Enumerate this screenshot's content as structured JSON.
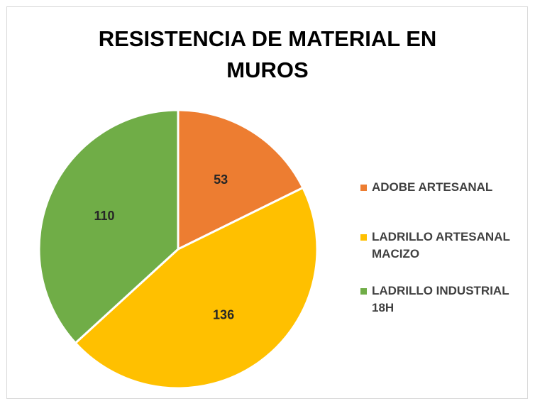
{
  "chart_data": {
    "type": "pie",
    "title": "RESISTENCIA DE MATERIAL EN MUROS",
    "categories": [
      "ADOBE ARTESANAL",
      "LADRILLO ARTESANAL MACIZO",
      "LADRILLO INDUSTRIAL 18H"
    ],
    "values": [
      53,
      136,
      110
    ],
    "colors": [
      "#ED7D31",
      "#FFC000",
      "#70AD47"
    ],
    "legend": "right"
  }
}
